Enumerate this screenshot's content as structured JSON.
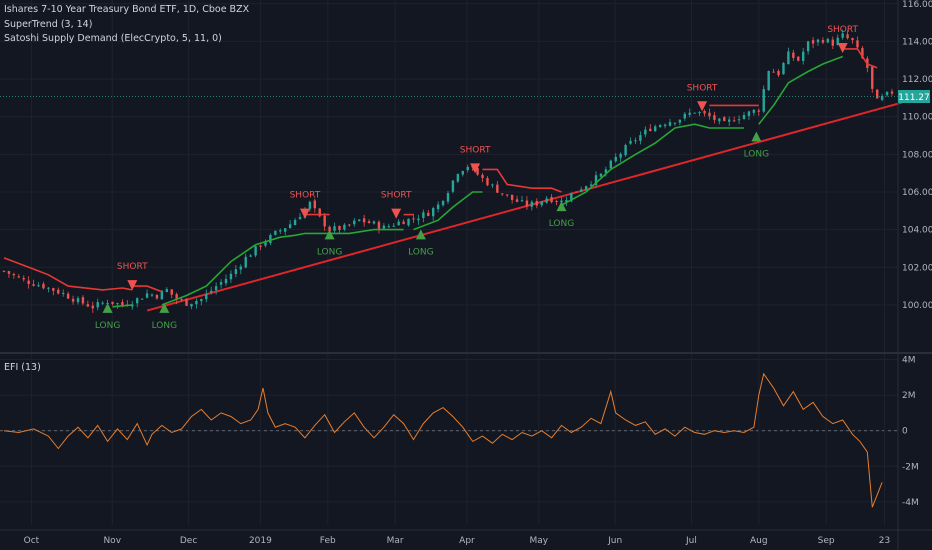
{
  "header": {
    "title": "Ishares 7-10 Year Treasury Bond ETF, 1D, Cboe BZX",
    "indicator1": "SuperTrend (3, 14)",
    "indicator2": "Satoshi Supply Demand (ElecCrypto, 5, 11, 0)",
    "efi_label": "EFI (13)"
  },
  "price_badge": "111.27",
  "colors": {
    "background": "#131722",
    "up": "#26a69a",
    "down": "#ef5350",
    "supertrend_up": "#26a634",
    "supertrend_down": "#e53935",
    "trendline": "#e0262a",
    "efi": "#e87d2c",
    "long": "#43a047",
    "short": "#ef5350"
  },
  "chart_data": [
    {
      "type": "candlestick",
      "title": "Ishares 7-10 Year Treasury Bond ETF, 1D, Cboe BZX",
      "ylim": [
        97.5,
        116.2
      ],
      "y_ticks": [
        "116.00",
        "114.00",
        "112.00",
        "110.00",
        "108.00",
        "106.00",
        "104.00",
        "102.00",
        "100.00"
      ],
      "x_ticks": [
        "Oct",
        "Nov",
        "Dec",
        "2019",
        "Feb",
        "Mar",
        "Apr",
        "May",
        "Jun",
        "Jul",
        "Aug",
        "Sep",
        "23"
      ],
      "last_price": 111.27,
      "close_path": [
        [
          0,
          101.8
        ],
        [
          8,
          101.3
        ],
        [
          16,
          101.0
        ],
        [
          24,
          100.6
        ],
        [
          30,
          100.2
        ],
        [
          36,
          99.9
        ],
        [
          42,
          100.2
        ],
        [
          48,
          100.0
        ],
        [
          54,
          100.3
        ],
        [
          58,
          100.6
        ],
        [
          62,
          100.5
        ],
        [
          66,
          100.8
        ],
        [
          70,
          100.3
        ],
        [
          74,
          100.1
        ],
        [
          80,
          100.3
        ],
        [
          86,
          101.0
        ],
        [
          92,
          101.6
        ],
        [
          98,
          102.5
        ],
        [
          104,
          103.2
        ],
        [
          110,
          103.8
        ],
        [
          116,
          104.3
        ],
        [
          120,
          104.8
        ],
        [
          124,
          105.4
        ],
        [
          128,
          104.6
        ],
        [
          132,
          104.0
        ],
        [
          138,
          104.1
        ],
        [
          144,
          104.5
        ],
        [
          150,
          104.3
        ],
        [
          154,
          104.1
        ],
        [
          160,
          104.4
        ],
        [
          166,
          104.6
        ],
        [
          172,
          104.9
        ],
        [
          176,
          105.3
        ],
        [
          180,
          106.1
        ],
        [
          184,
          107.1
        ],
        [
          188,
          107.4
        ],
        [
          194,
          106.7
        ],
        [
          200,
          106.1
        ],
        [
          206,
          105.6
        ],
        [
          212,
          105.3
        ],
        [
          216,
          105.4
        ],
        [
          220,
          105.7
        ],
        [
          226,
          105.5
        ],
        [
          230,
          105.9
        ],
        [
          236,
          106.4
        ],
        [
          242,
          106.9
        ],
        [
          248,
          107.8
        ],
        [
          254,
          108.6
        ],
        [
          258,
          109.0
        ],
        [
          262,
          109.4
        ],
        [
          268,
          109.7
        ],
        [
          274,
          109.9
        ],
        [
          280,
          110.3
        ],
        [
          286,
          110.0
        ],
        [
          292,
          109.6
        ],
        [
          296,
          109.9
        ],
        [
          302,
          110.2
        ],
        [
          306,
          110.4
        ],
        [
          310,
          112.5
        ],
        [
          314,
          112.3
        ],
        [
          318,
          113.3
        ],
        [
          322,
          113.0
        ],
        [
          326,
          113.9
        ],
        [
          332,
          114.1
        ],
        [
          336,
          113.9
        ],
        [
          340,
          114.3
        ],
        [
          344,
          114.0
        ],
        [
          347,
          113.3
        ],
        [
          350,
          112.6
        ],
        [
          352,
          111.4
        ],
        [
          354,
          110.8
        ],
        [
          357,
          111.1
        ],
        [
          360,
          111.3
        ]
      ],
      "supertrend": [
        {
          "dir": "down",
          "path": [
            [
              0,
              102.5
            ],
            [
              10,
              102.0
            ],
            [
              18,
              101.6
            ],
            [
              26,
              101.0
            ],
            [
              40,
              100.8
            ],
            [
              48,
              100.9
            ],
            [
              52,
              100.8
            ]
          ]
        },
        {
          "dir": "up",
          "path": [
            [
              44,
              99.9
            ],
            [
              52,
              100.0
            ]
          ]
        },
        {
          "dir": "down",
          "path": [
            [
              52,
              101.0
            ],
            [
              58,
              101.0
            ],
            [
              64,
              100.7
            ]
          ]
        },
        {
          "dir": "up",
          "path": [
            [
              64,
              100.0
            ],
            [
              74,
              100.5
            ],
            [
              82,
              101.0
            ],
            [
              92,
              102.3
            ],
            [
              102,
              103.2
            ],
            [
              112,
              103.6
            ],
            [
              118,
              103.7
            ],
            [
              122,
              103.8
            ],
            [
              128,
              103.8
            ],
            [
              132,
              103.8
            ]
          ]
        },
        {
          "dir": "down",
          "path": [
            [
              122,
              104.8
            ],
            [
              128,
              104.8
            ],
            [
              132,
              104.8
            ]
          ]
        },
        {
          "dir": "up",
          "path": [
            [
              132,
              103.8
            ],
            [
              140,
              103.8
            ],
            [
              150,
              104.0
            ],
            [
              158,
              104.0
            ],
            [
              162,
              104.0
            ]
          ]
        },
        {
          "dir": "down",
          "path": [
            [
              162,
              104.8
            ],
            [
              166,
              104.8
            ]
          ]
        },
        {
          "dir": "up",
          "path": [
            [
              166,
              104.0
            ],
            [
              176,
              104.5
            ],
            [
              182,
              105.2
            ],
            [
              190,
              106.0
            ],
            [
              194,
              106.0
            ]
          ]
        },
        {
          "dir": "down",
          "path": [
            [
              194,
              107.2
            ],
            [
              200,
              107.2
            ],
            [
              204,
              106.4
            ],
            [
              214,
              106.2
            ],
            [
              222,
              106.2
            ],
            [
              226,
              106.0
            ]
          ]
        },
        {
          "dir": "up",
          "path": [
            [
              226,
              105.3
            ],
            [
              236,
              106.0
            ],
            [
              246,
              107.2
            ],
            [
              256,
              108.0
            ],
            [
              264,
              108.6
            ],
            [
              272,
              109.4
            ],
            [
              280,
              109.6
            ],
            [
              286,
              109.4
            ],
            [
              292,
              109.4
            ],
            [
              300,
              109.4
            ]
          ]
        },
        {
          "dir": "down",
          "path": [
            [
              286,
              110.6
            ],
            [
              292,
              110.6
            ],
            [
              300,
              110.6
            ],
            [
              306,
              110.6
            ]
          ]
        },
        {
          "dir": "up",
          "path": [
            [
              306,
              109.6
            ],
            [
              312,
              110.6
            ],
            [
              318,
              111.8
            ],
            [
              326,
              112.4
            ],
            [
              332,
              112.8
            ],
            [
              340,
              113.2
            ]
          ]
        },
        {
          "dir": "down",
          "path": [
            [
              340,
              113.6
            ],
            [
              346,
              113.6
            ],
            [
              350,
              112.8
            ],
            [
              354,
              112.6
            ]
          ]
        }
      ],
      "trendline": {
        "from": [
          58,
          99.7
        ],
        "to": [
          360,
          110.4
        ]
      },
      "signals": [
        {
          "label": "LONG",
          "kind": "long",
          "x": 42,
          "y": 99.9
        },
        {
          "label": "SHORT",
          "kind": "short",
          "x": 52,
          "y": 101.0
        },
        {
          "label": "LONG",
          "kind": "long",
          "x": 65,
          "y": 99.9
        },
        {
          "label": "SHORT",
          "kind": "short",
          "x": 122,
          "y": 104.8
        },
        {
          "label": "LONG",
          "kind": "long",
          "x": 132,
          "y": 103.8
        },
        {
          "label": "SHORT",
          "kind": "short",
          "x": 159,
          "y": 104.8
        },
        {
          "label": "LONG",
          "kind": "long",
          "x": 169,
          "y": 103.8
        },
        {
          "label": "SHORT",
          "kind": "short",
          "x": 191,
          "y": 107.2
        },
        {
          "label": "LONG",
          "kind": "long",
          "x": 226,
          "y": 105.3
        },
        {
          "label": "SHORT",
          "kind": "short",
          "x": 283,
          "y": 110.5
        },
        {
          "label": "LONG",
          "kind": "long",
          "x": 305,
          "y": 109.0
        },
        {
          "label": "SHORT",
          "kind": "short",
          "x": 340,
          "y": 113.6
        }
      ]
    },
    {
      "type": "line",
      "title": "EFI (13)",
      "ylim": [
        -5.3,
        4.2
      ],
      "y_ticks": [
        "4M",
        "2M",
        "0",
        "-2M",
        "-4M"
      ],
      "series": [
        {
          "name": "EFI (13)",
          "values_path": [
            [
              0,
              0.0
            ],
            [
              6,
              -0.1
            ],
            [
              12,
              0.1
            ],
            [
              18,
              -0.3
            ],
            [
              22,
              -1.0
            ],
            [
              26,
              -0.3
            ],
            [
              30,
              0.2
            ],
            [
              34,
              -0.4
            ],
            [
              38,
              0.3
            ],
            [
              42,
              -0.6
            ],
            [
              46,
              0.1
            ],
            [
              50,
              -0.5
            ],
            [
              54,
              0.4
            ],
            [
              58,
              -0.8
            ],
            [
              60,
              -0.2
            ],
            [
              64,
              0.3
            ],
            [
              68,
              -0.1
            ],
            [
              72,
              0.1
            ],
            [
              76,
              0.8
            ],
            [
              80,
              1.2
            ],
            [
              84,
              0.6
            ],
            [
              88,
              1.0
            ],
            [
              92,
              0.8
            ],
            [
              96,
              0.4
            ],
            [
              100,
              0.6
            ],
            [
              103,
              1.2
            ],
            [
              105,
              2.4
            ],
            [
              107,
              1.0
            ],
            [
              110,
              0.2
            ],
            [
              114,
              0.4
            ],
            [
              118,
              0.2
            ],
            [
              122,
              -0.4
            ],
            [
              126,
              0.3
            ],
            [
              130,
              0.9
            ],
            [
              134,
              -0.1
            ],
            [
              138,
              0.5
            ],
            [
              142,
              1.0
            ],
            [
              146,
              0.2
            ],
            [
              150,
              -0.4
            ],
            [
              154,
              0.2
            ],
            [
              158,
              0.9
            ],
            [
              162,
              0.4
            ],
            [
              166,
              -0.5
            ],
            [
              170,
              0.4
            ],
            [
              174,
              1.0
            ],
            [
              178,
              1.3
            ],
            [
              182,
              0.8
            ],
            [
              186,
              0.2
            ],
            [
              190,
              -0.6
            ],
            [
              194,
              -0.3
            ],
            [
              198,
              -0.7
            ],
            [
              202,
              -0.2
            ],
            [
              206,
              -0.5
            ],
            [
              210,
              -0.1
            ],
            [
              214,
              -0.3
            ],
            [
              218,
              0.0
            ],
            [
              222,
              -0.4
            ],
            [
              226,
              0.3
            ],
            [
              230,
              -0.1
            ],
            [
              234,
              0.2
            ],
            [
              238,
              0.7
            ],
            [
              242,
              0.4
            ],
            [
              246,
              2.2
            ],
            [
              248,
              1.0
            ],
            [
              252,
              0.6
            ],
            [
              256,
              0.3
            ],
            [
              260,
              0.5
            ],
            [
              264,
              -0.2
            ],
            [
              268,
              0.1
            ],
            [
              272,
              -0.3
            ],
            [
              276,
              0.2
            ],
            [
              280,
              -0.1
            ],
            [
              284,
              -0.2
            ],
            [
              288,
              0.0
            ],
            [
              292,
              -0.1
            ],
            [
              296,
              0.0
            ],
            [
              300,
              -0.1
            ],
            [
              304,
              0.2
            ],
            [
              306,
              2.0
            ],
            [
              308,
              3.2
            ],
            [
              312,
              2.4
            ],
            [
              316,
              1.4
            ],
            [
              320,
              2.2
            ],
            [
              324,
              1.2
            ],
            [
              328,
              1.6
            ],
            [
              332,
              0.8
            ],
            [
              336,
              0.4
            ],
            [
              340,
              0.6
            ],
            [
              344,
              -0.2
            ],
            [
              347,
              -0.6
            ],
            [
              350,
              -1.2
            ],
            [
              352,
              -4.3
            ],
            [
              354,
              -3.6
            ],
            [
              356,
              -2.9
            ]
          ]
        }
      ]
    }
  ]
}
